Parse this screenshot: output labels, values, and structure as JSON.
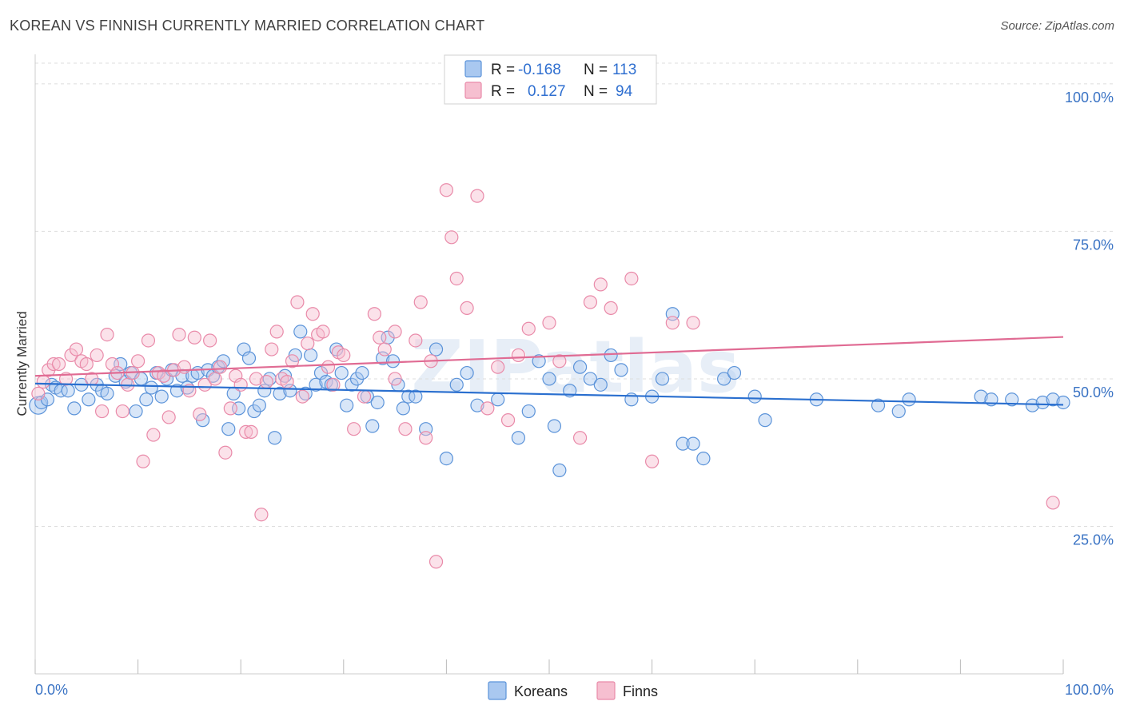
{
  "title": "KOREAN VS FINNISH CURRENTLY MARRIED CORRELATION CHART",
  "source": "Source: ZipAtlas.com",
  "watermark": "ZIPatlas",
  "colors": {
    "korean_fill": "#a9c8f0",
    "korean_stroke": "#5b93d9",
    "korean_line": "#2a6fcf",
    "finn_fill": "#f6bfd0",
    "finn_stroke": "#e98aa9",
    "finn_line": "#e06b93",
    "tick_label": "#3a73c4",
    "grid": "#dddddd"
  },
  "legend": {
    "r_label": "R =",
    "n_label": "N =",
    "korean_r": "-0.168",
    "korean_n": "113",
    "finn_r": "0.127",
    "finn_n": "94"
  },
  "chart_data": {
    "type": "scatter",
    "title": "KOREAN VS FINNISH CURRENTLY MARRIED CORRELATION CHART",
    "xlabel": "",
    "ylabel": "Currently Married",
    "xlim": [
      0,
      100
    ],
    "ylim": [
      0,
      105
    ],
    "x_tick_labels": [
      "0.0%",
      "100.0%"
    ],
    "y_ticks": [
      25,
      50,
      75,
      100
    ],
    "y_tick_labels": [
      "25.0%",
      "50.0%",
      "75.0%",
      "100.0%"
    ],
    "grid": true,
    "legend_position": "top-center",
    "series": [
      {
        "name": "Koreans",
        "r": -0.168,
        "n": 113,
        "trend": {
          "x": [
            0,
            100
          ],
          "y": [
            49.2,
            45.6
          ]
        },
        "points": [
          [
            0.3,
            45.5
          ],
          [
            0.6,
            46
          ],
          [
            1.2,
            46.5
          ],
          [
            1.6,
            49
          ],
          [
            2.0,
            48.5
          ],
          [
            2.5,
            48
          ],
          [
            3.2,
            48
          ],
          [
            3.8,
            45
          ],
          [
            4.5,
            49
          ],
          [
            5.2,
            46.5
          ],
          [
            6,
            49
          ],
          [
            6.5,
            48
          ],
          [
            7,
            47.5
          ],
          [
            7.8,
            50.5
          ],
          [
            8.3,
            52.5
          ],
          [
            8.8,
            49.5
          ],
          [
            9.3,
            51
          ],
          [
            9.8,
            44.5
          ],
          [
            10.3,
            50
          ],
          [
            10.8,
            46.5
          ],
          [
            11.3,
            48.5
          ],
          [
            11.8,
            51
          ],
          [
            12.3,
            47
          ],
          [
            12.8,
            50
          ],
          [
            13.3,
            51.5
          ],
          [
            13.8,
            48
          ],
          [
            14.3,
            50.5
          ],
          [
            14.8,
            48.5
          ],
          [
            15.3,
            50.5
          ],
          [
            15.8,
            51
          ],
          [
            16.3,
            43
          ],
          [
            16.8,
            51.5
          ],
          [
            17.3,
            50.5
          ],
          [
            17.8,
            52
          ],
          [
            18.3,
            53
          ],
          [
            18.8,
            41.5
          ],
          [
            19.3,
            47.5
          ],
          [
            19.8,
            45
          ],
          [
            20.3,
            55
          ],
          [
            20.8,
            53.5
          ],
          [
            21.3,
            44.5
          ],
          [
            21.8,
            45.5
          ],
          [
            22.3,
            48
          ],
          [
            22.8,
            50
          ],
          [
            23.3,
            40
          ],
          [
            23.8,
            47.5
          ],
          [
            24.3,
            50.5
          ],
          [
            24.8,
            48
          ],
          [
            25.3,
            54
          ],
          [
            25.8,
            58
          ],
          [
            26.3,
            47.5
          ],
          [
            26.8,
            54
          ],
          [
            27.3,
            49
          ],
          [
            27.8,
            51
          ],
          [
            28.3,
            49.5
          ],
          [
            28.8,
            49
          ],
          [
            29.3,
            55
          ],
          [
            29.8,
            51
          ],
          [
            30.3,
            45.5
          ],
          [
            30.8,
            49
          ],
          [
            31.3,
            50
          ],
          [
            31.8,
            51
          ],
          [
            32.3,
            47
          ],
          [
            32.8,
            42
          ],
          [
            33.3,
            46
          ],
          [
            33.8,
            53.5
          ],
          [
            34.3,
            57
          ],
          [
            34.8,
            53
          ],
          [
            35.3,
            49
          ],
          [
            35.8,
            45
          ],
          [
            36.3,
            47
          ],
          [
            37,
            47
          ],
          [
            38,
            41.5
          ],
          [
            39,
            55
          ],
          [
            40,
            36.5
          ],
          [
            41,
            49
          ],
          [
            42,
            51
          ],
          [
            43,
            45.5
          ],
          [
            45,
            46.5
          ],
          [
            47,
            40
          ],
          [
            48,
            44.5
          ],
          [
            49,
            53
          ],
          [
            50,
            50
          ],
          [
            50.5,
            42
          ],
          [
            51,
            34.5
          ],
          [
            52,
            48
          ],
          [
            53,
            52
          ],
          [
            54,
            50
          ],
          [
            55,
            49
          ],
          [
            56,
            54
          ],
          [
            57,
            51.5
          ],
          [
            58,
            46.5
          ],
          [
            60,
            47
          ],
          [
            61,
            50
          ],
          [
            62,
            61
          ],
          [
            63,
            39
          ],
          [
            64,
            39
          ],
          [
            65,
            36.5
          ],
          [
            67,
            50
          ],
          [
            68,
            51
          ],
          [
            70,
            47
          ],
          [
            71,
            43
          ],
          [
            76,
            46.5
          ],
          [
            82,
            45.5
          ],
          [
            84,
            44.5
          ],
          [
            85,
            46.5
          ],
          [
            92,
            47
          ],
          [
            93,
            46.5
          ],
          [
            95,
            46.5
          ],
          [
            97,
            45.5
          ],
          [
            98,
            46
          ],
          [
            99,
            46.5
          ],
          [
            100,
            46
          ]
        ]
      },
      {
        "name": "Finns",
        "r": 0.127,
        "n": 94,
        "trend": {
          "x": [
            0,
            100
          ],
          "y": [
            50.5,
            57.1
          ]
        },
        "points": [
          [
            0.3,
            47.5
          ],
          [
            0.8,
            49.5
          ],
          [
            1.3,
            51.5
          ],
          [
            1.8,
            52.5
          ],
          [
            2.3,
            52.5
          ],
          [
            3,
            50
          ],
          [
            3.5,
            54
          ],
          [
            4,
            55
          ],
          [
            4.5,
            53
          ],
          [
            5,
            52.5
          ],
          [
            5.5,
            50
          ],
          [
            6,
            54
          ],
          [
            6.5,
            44.5
          ],
          [
            7,
            57.5
          ],
          [
            7.5,
            52.5
          ],
          [
            8,
            51
          ],
          [
            8.5,
            44.5
          ],
          [
            9,
            49
          ],
          [
            9.5,
            51
          ],
          [
            10,
            53
          ],
          [
            10.5,
            36
          ],
          [
            11,
            56.5
          ],
          [
            11.5,
            40.5
          ],
          [
            12,
            51
          ],
          [
            12.5,
            50.5
          ],
          [
            13,
            43.5
          ],
          [
            13.5,
            51.5
          ],
          [
            14,
            57.5
          ],
          [
            14.5,
            52
          ],
          [
            15,
            48
          ],
          [
            15.5,
            57
          ],
          [
            16,
            44
          ],
          [
            16.5,
            49
          ],
          [
            17,
            56.5
          ],
          [
            17.5,
            50
          ],
          [
            18,
            52
          ],
          [
            18.5,
            37.5
          ],
          [
            19,
            45
          ],
          [
            19.5,
            50.5
          ],
          [
            20,
            49
          ],
          [
            20.5,
            41
          ],
          [
            21,
            41
          ],
          [
            21.5,
            50
          ],
          [
            22,
            27
          ],
          [
            22.5,
            49.5
          ],
          [
            23,
            55
          ],
          [
            23.5,
            58
          ],
          [
            24,
            50
          ],
          [
            24.5,
            49.5
          ],
          [
            25,
            53
          ],
          [
            25.5,
            63
          ],
          [
            26,
            47
          ],
          [
            26.5,
            56
          ],
          [
            27,
            61
          ],
          [
            27.5,
            57.5
          ],
          [
            28,
            58
          ],
          [
            28.5,
            52
          ],
          [
            29,
            49
          ],
          [
            29.5,
            54.5
          ],
          [
            30,
            54
          ],
          [
            31,
            41.5
          ],
          [
            32,
            47
          ],
          [
            33,
            61
          ],
          [
            33.5,
            57
          ],
          [
            34,
            55
          ],
          [
            35,
            50
          ],
          [
            36,
            41.5
          ],
          [
            37,
            56.5
          ],
          [
            37.5,
            63
          ],
          [
            38,
            40
          ],
          [
            38.5,
            53
          ],
          [
            39,
            19
          ],
          [
            40,
            82
          ],
          [
            40.5,
            74
          ],
          [
            41,
            67
          ],
          [
            42,
            62
          ],
          [
            43,
            81
          ],
          [
            45,
            52
          ],
          [
            47,
            54
          ],
          [
            48,
            58.5
          ],
          [
            50,
            59.5
          ],
          [
            51,
            53
          ],
          [
            53,
            40
          ],
          [
            55,
            66
          ],
          [
            56,
            62
          ],
          [
            58,
            67
          ],
          [
            60,
            36
          ],
          [
            62,
            59.5
          ],
          [
            64,
            59.5
          ],
          [
            99,
            29
          ],
          [
            54,
            63
          ],
          [
            46,
            43
          ],
          [
            44,
            45
          ],
          [
            35,
            58
          ]
        ]
      }
    ]
  },
  "bottom_legend": {
    "korean_label": "Koreans",
    "finn_label": "Finns"
  }
}
